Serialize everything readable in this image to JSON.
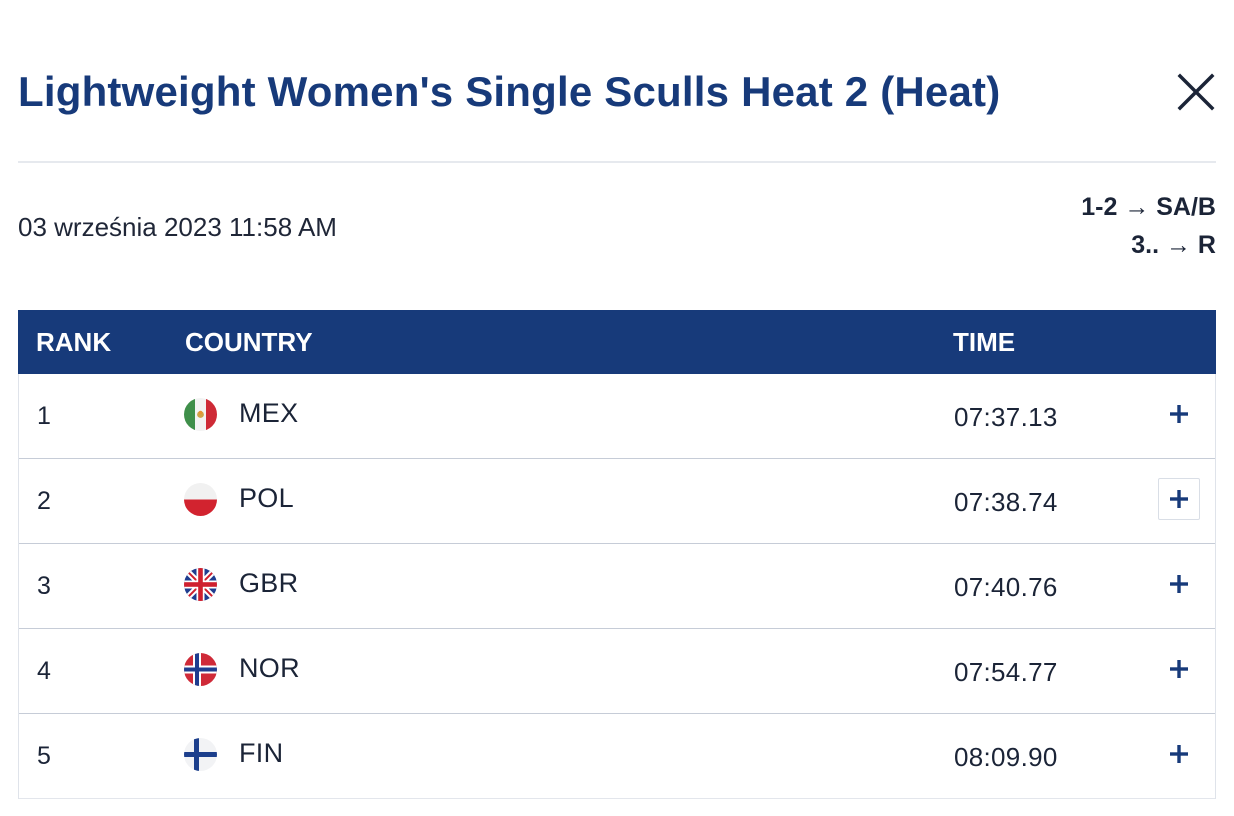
{
  "modal": {
    "title": "Lightweight Women's Single Sculls Heat 2 (Heat)",
    "close_icon": "close-icon",
    "date": "03 września 2023 11:58 AM",
    "progression": [
      "1-2 → SA/B",
      "3.. → R"
    ]
  },
  "table": {
    "headers": {
      "rank": "RANK",
      "country": "COUNTRY",
      "time": "TIME"
    },
    "rows": [
      {
        "rank": "1",
        "country": "MEX",
        "flag": "mexico-flag-icon",
        "time": "07:37.13",
        "expand_icon": "plus-icon"
      },
      {
        "rank": "2",
        "country": "POL",
        "flag": "poland-flag-icon",
        "time": "07:38.74",
        "expand_icon": "plus-icon"
      },
      {
        "rank": "3",
        "country": "GBR",
        "flag": "great-britain-flag-icon",
        "time": "07:40.76",
        "expand_icon": "plus-icon"
      },
      {
        "rank": "4",
        "country": "NOR",
        "flag": "norway-flag-icon",
        "time": "07:54.77",
        "expand_icon": "plus-icon"
      },
      {
        "rank": "5",
        "country": "FIN",
        "flag": "finland-flag-icon",
        "time": "08:09.90",
        "expand_icon": "plus-icon"
      }
    ]
  },
  "colors": {
    "brand_navy": "#173a7a",
    "text": "#1b2437",
    "divider": "#e6e9ee"
  }
}
